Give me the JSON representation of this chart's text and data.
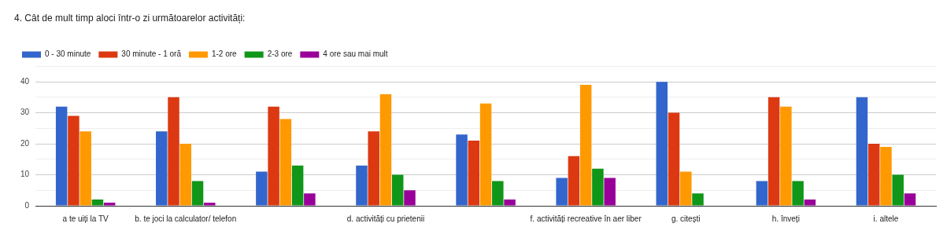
{
  "chart_data": {
    "type": "bar",
    "title": "4. Cât de mult timp aloci într-o zi următoarelor activități:",
    "categories": [
      "a te uiți la TV",
      "b. te joci la calculator/ telefon",
      null,
      "d. activități cu prietenii",
      null,
      "f. activități recreative în aer liber",
      "g. citești",
      "h. înveți",
      "i. altele"
    ],
    "series": [
      {
        "name": "0 - 30 minute",
        "color": "#3366cc",
        "values": [
          32,
          24,
          11,
          13,
          23,
          9,
          40,
          8,
          35
        ]
      },
      {
        "name": "30 minute - 1 oră",
        "color": "#dc3912",
        "values": [
          29,
          35,
          32,
          24,
          21,
          16,
          30,
          35,
          20
        ]
      },
      {
        "name": "1-2 ore",
        "color": "#ff9900",
        "values": [
          24,
          20,
          28,
          36,
          33,
          39,
          11,
          32,
          19
        ]
      },
      {
        "name": "2-3 ore",
        "color": "#109618",
        "values": [
          2,
          8,
          13,
          10,
          8,
          12,
          4,
          8,
          10
        ]
      },
      {
        "name": "4 ore sau mai mult",
        "color": "#990099",
        "values": [
          1,
          1,
          4,
          5,
          2,
          9,
          0,
          2,
          4
        ]
      }
    ],
    "ylim": [
      0,
      45
    ],
    "yticks": [
      0,
      {
        "value": 5,
        "label": null
      },
      10,
      {
        "value": 15,
        "label": null
      },
      20,
      {
        "value": 25,
        "label": null
      },
      30,
      {
        "value": 35,
        "label": null
      },
      40,
      {
        "value": 45,
        "label": null
      }
    ],
    "grid": "y",
    "legend": "top left"
  }
}
